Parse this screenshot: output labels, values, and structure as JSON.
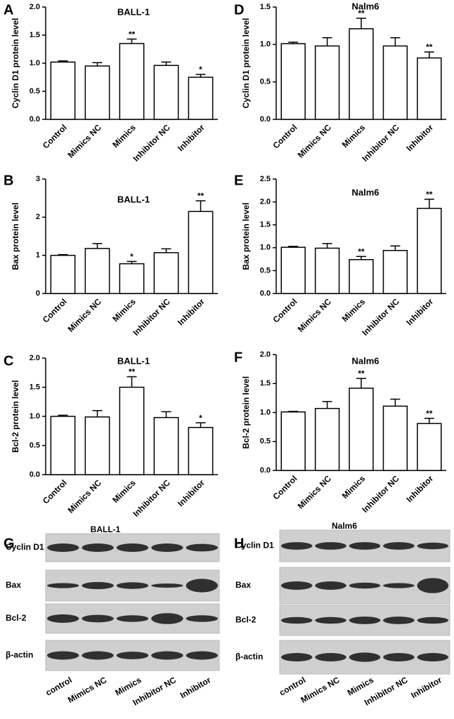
{
  "chart_data": [
    {
      "type": "bar",
      "panel_label": "A",
      "title": "BALL-1",
      "y_label": "Cyclin D1 protein level",
      "categories": [
        "Control",
        "Mimics NC",
        "Mimics",
        "Inhibitor NC",
        "Inhibitor"
      ],
      "values": [
        1.02,
        0.95,
        1.35,
        0.96,
        0.75
      ],
      "errors": [
        0.02,
        0.06,
        0.08,
        0.06,
        0.05
      ],
      "annotations": [
        null,
        null,
        "**",
        null,
        "*"
      ],
      "color": "#ffffff",
      "ylim": [
        0,
        2
      ],
      "yticks": [
        {
          "value": 0,
          "label": "0.0"
        },
        0.5,
        {
          "value": 1,
          "label": "1.0"
        },
        1.5,
        {
          "value": 2,
          "label": "2.0"
        }
      ]
    },
    {
      "type": "bar",
      "panel_label": "B",
      "title": "BALL-1",
      "y_label": "Bax protein level",
      "categories": [
        "Control",
        "Mimics NC",
        "Mimics",
        "Inhibitor NC",
        "Inhibitor"
      ],
      "values": [
        1.0,
        1.18,
        0.78,
        1.07,
        2.15
      ],
      "errors": [
        0.02,
        0.13,
        0.06,
        0.1,
        0.28
      ],
      "annotations": [
        null,
        null,
        "*",
        null,
        "**"
      ],
      "color": "#ffffff",
      "ylim": [
        0,
        3
      ],
      "yticks": [
        0,
        1,
        2,
        3
      ]
    },
    {
      "type": "bar",
      "panel_label": "C",
      "title": "BALL-1",
      "y_label": "Bcl-2 protein level",
      "categories": [
        "Control",
        "Mimics NC",
        "Mimics",
        "Inhibitor NC",
        "Inhibitor"
      ],
      "values": [
        1.0,
        0.99,
        1.5,
        0.98,
        0.81
      ],
      "errors": [
        0.02,
        0.11,
        0.18,
        0.1,
        0.08
      ],
      "annotations": [
        null,
        null,
        "**",
        null,
        "*"
      ],
      "color": "#ffffff",
      "ylim": [
        0,
        2
      ],
      "yticks": [
        {
          "value": 0,
          "label": "0.0"
        },
        0.5,
        {
          "value": 1,
          "label": "1.0"
        },
        1.5,
        {
          "value": 2,
          "label": "2.0"
        }
      ]
    },
    {
      "type": "bar",
      "panel_label": "D",
      "title": "Nalm6",
      "y_label": "Cyclin D1 protein level",
      "categories": [
        "Control",
        "Mimics NC",
        "Mimics",
        "Inhibitor NC",
        "Inhibitor"
      ],
      "values": [
        1.01,
        0.98,
        1.21,
        0.98,
        0.82
      ],
      "errors": [
        0.02,
        0.11,
        0.14,
        0.11,
        0.08
      ],
      "annotations": [
        null,
        null,
        "**",
        null,
        "**"
      ],
      "color": "#ffffff",
      "ylim": [
        0,
        1.5
      ],
      "yticks": [
        {
          "value": 0,
          "label": "0.0"
        },
        0.5,
        {
          "value": 1,
          "label": "1.0"
        },
        1.5
      ]
    },
    {
      "type": "bar",
      "panel_label": "E",
      "title": "Nalm6",
      "y_label": "Bax protein level",
      "categories": [
        "Control",
        "Mimics NC",
        "Mimics",
        "Inhibitor NC",
        "Inhibitor"
      ],
      "values": [
        1.01,
        0.99,
        0.74,
        0.94,
        1.86
      ],
      "errors": [
        0.02,
        0.1,
        0.07,
        0.1,
        0.2
      ],
      "annotations": [
        null,
        null,
        "**",
        null,
        "**"
      ],
      "color": "#ffffff",
      "ylim": [
        0,
        2.5
      ],
      "yticks": [
        {
          "value": 0,
          "label": "0.0"
        },
        0.5,
        {
          "value": 1,
          "label": "1.0"
        },
        1.5,
        {
          "value": 2,
          "label": "2.0"
        },
        2.5
      ]
    },
    {
      "type": "bar",
      "panel_label": "F",
      "title": "Nalm6",
      "y_label": "Bcl-2 protein level",
      "categories": [
        "Control",
        "Mimics NC",
        "Mimics",
        "Inhibitor NC",
        "Inhibitor"
      ],
      "values": [
        1.01,
        1.07,
        1.42,
        1.11,
        0.81
      ],
      "errors": [
        0.01,
        0.12,
        0.17,
        0.12,
        0.09
      ],
      "annotations": [
        null,
        null,
        "**",
        null,
        "**"
      ],
      "color": "#ffffff",
      "ylim": [
        0,
        2
      ],
      "yticks": [
        {
          "value": 0,
          "label": "0.0"
        },
        0.5,
        {
          "value": 1,
          "label": "1.0"
        },
        1.5,
        {
          "value": 2,
          "label": "2.0"
        }
      ]
    }
  ],
  "blots": [
    {
      "panel_label": "G",
      "title": "BALL-1",
      "rows": [
        "Cyclin D1",
        "Bax",
        "Bcl-2",
        "β-actin"
      ],
      "lanes": [
        "control",
        "Mimics NC",
        "Mimics",
        "Inhibitor NC",
        "Inhibitor"
      ]
    },
    {
      "panel_label": "H",
      "title": "Nalm6",
      "rows": [
        "Cyclin D1",
        "Bax",
        "Bcl-2",
        "β-actin"
      ],
      "lanes": [
        "control",
        "Mimics NC",
        "Mimics",
        "Inhibitor NC",
        "Inhibitor"
      ]
    }
  ]
}
